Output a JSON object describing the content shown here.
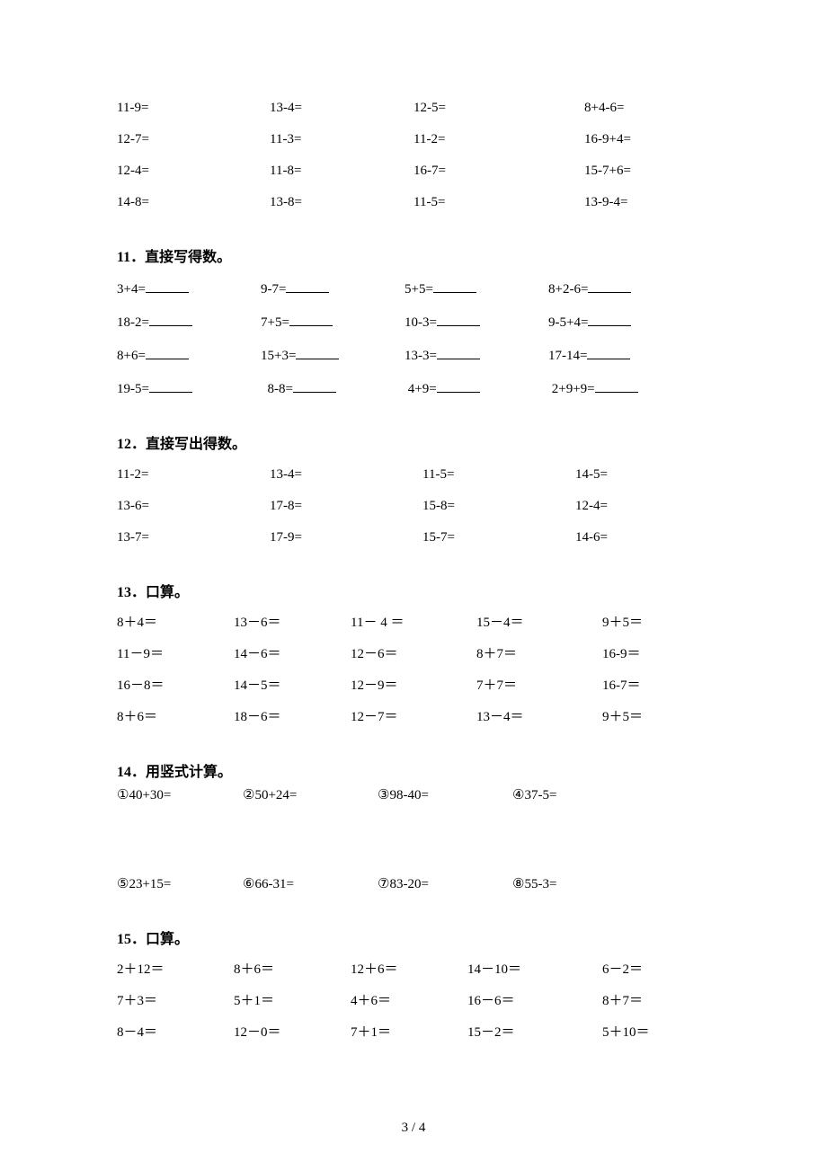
{
  "page_number": "3 / 4",
  "sections": {
    "s0": {
      "rows": [
        [
          "11-9=",
          "13-4=",
          "12-5=",
          "8+4-6="
        ],
        [
          "12-7=",
          "11-3=",
          "11-2=",
          "16-9+4="
        ],
        [
          "12-4=",
          "11-8=",
          "16-7=",
          "15-7+6="
        ],
        [
          "14-8=",
          "13-8=",
          "11-5=",
          "13-9-4="
        ]
      ]
    },
    "s11": {
      "title": "11．直接写得数。",
      "rows": [
        [
          "3+4=",
          "9-7=",
          "5+5=",
          "8+2-6="
        ],
        [
          "18-2=",
          "7+5=",
          "10-3=",
          "9-5+4="
        ],
        [
          "8+6=",
          "15+3=",
          "13-3=",
          "17-14="
        ],
        [
          "19-5=",
          "8-8=",
          "4+9=",
          "2+9+9="
        ]
      ]
    },
    "s12": {
      "title": "12．直接写出得数。",
      "rows": [
        [
          "11-2=",
          "13-4=",
          "11-5=",
          "14-5="
        ],
        [
          "13-6=",
          "17-8=",
          "15-8=",
          "12-4="
        ],
        [
          "13-7=",
          "17-9=",
          "15-7=",
          "14-6="
        ]
      ]
    },
    "s13": {
      "title": "13．口算。",
      "rows": [
        [
          "8＋4＝",
          "13－6＝",
          "11－ 4 ＝",
          "15－4＝",
          "9＋5＝"
        ],
        [
          "11－9＝",
          "14－6＝",
          "12－6＝",
          "8＋7＝",
          "16-9＝"
        ],
        [
          "16－8＝",
          "14－5＝",
          "12－9＝",
          "7＋7＝",
          "16-7＝"
        ],
        [
          "8＋6＝",
          "18－6＝",
          "12－7＝",
          "13－4＝",
          "9＋5＝"
        ]
      ]
    },
    "s14": {
      "title": "14．用竖式计算。",
      "rows": [
        [
          "①40+30=",
          "②50+24=",
          "③98-40=",
          "④37-5="
        ],
        [
          "⑤23+15=",
          "⑥66-31=",
          "⑦83-20=",
          "⑧55-3="
        ]
      ]
    },
    "s15": {
      "title": "15．口算。",
      "rows": [
        [
          "2＋12＝",
          "8＋6＝",
          "12＋6＝",
          "14－10＝",
          "6－2＝"
        ],
        [
          "7＋3＝",
          "5＋1＝",
          "4＋6＝",
          "16－6＝",
          "8＋7＝"
        ],
        [
          "8－4＝",
          "12－0＝",
          "7＋1＝",
          "15－2＝",
          "5＋10＝"
        ]
      ]
    }
  }
}
